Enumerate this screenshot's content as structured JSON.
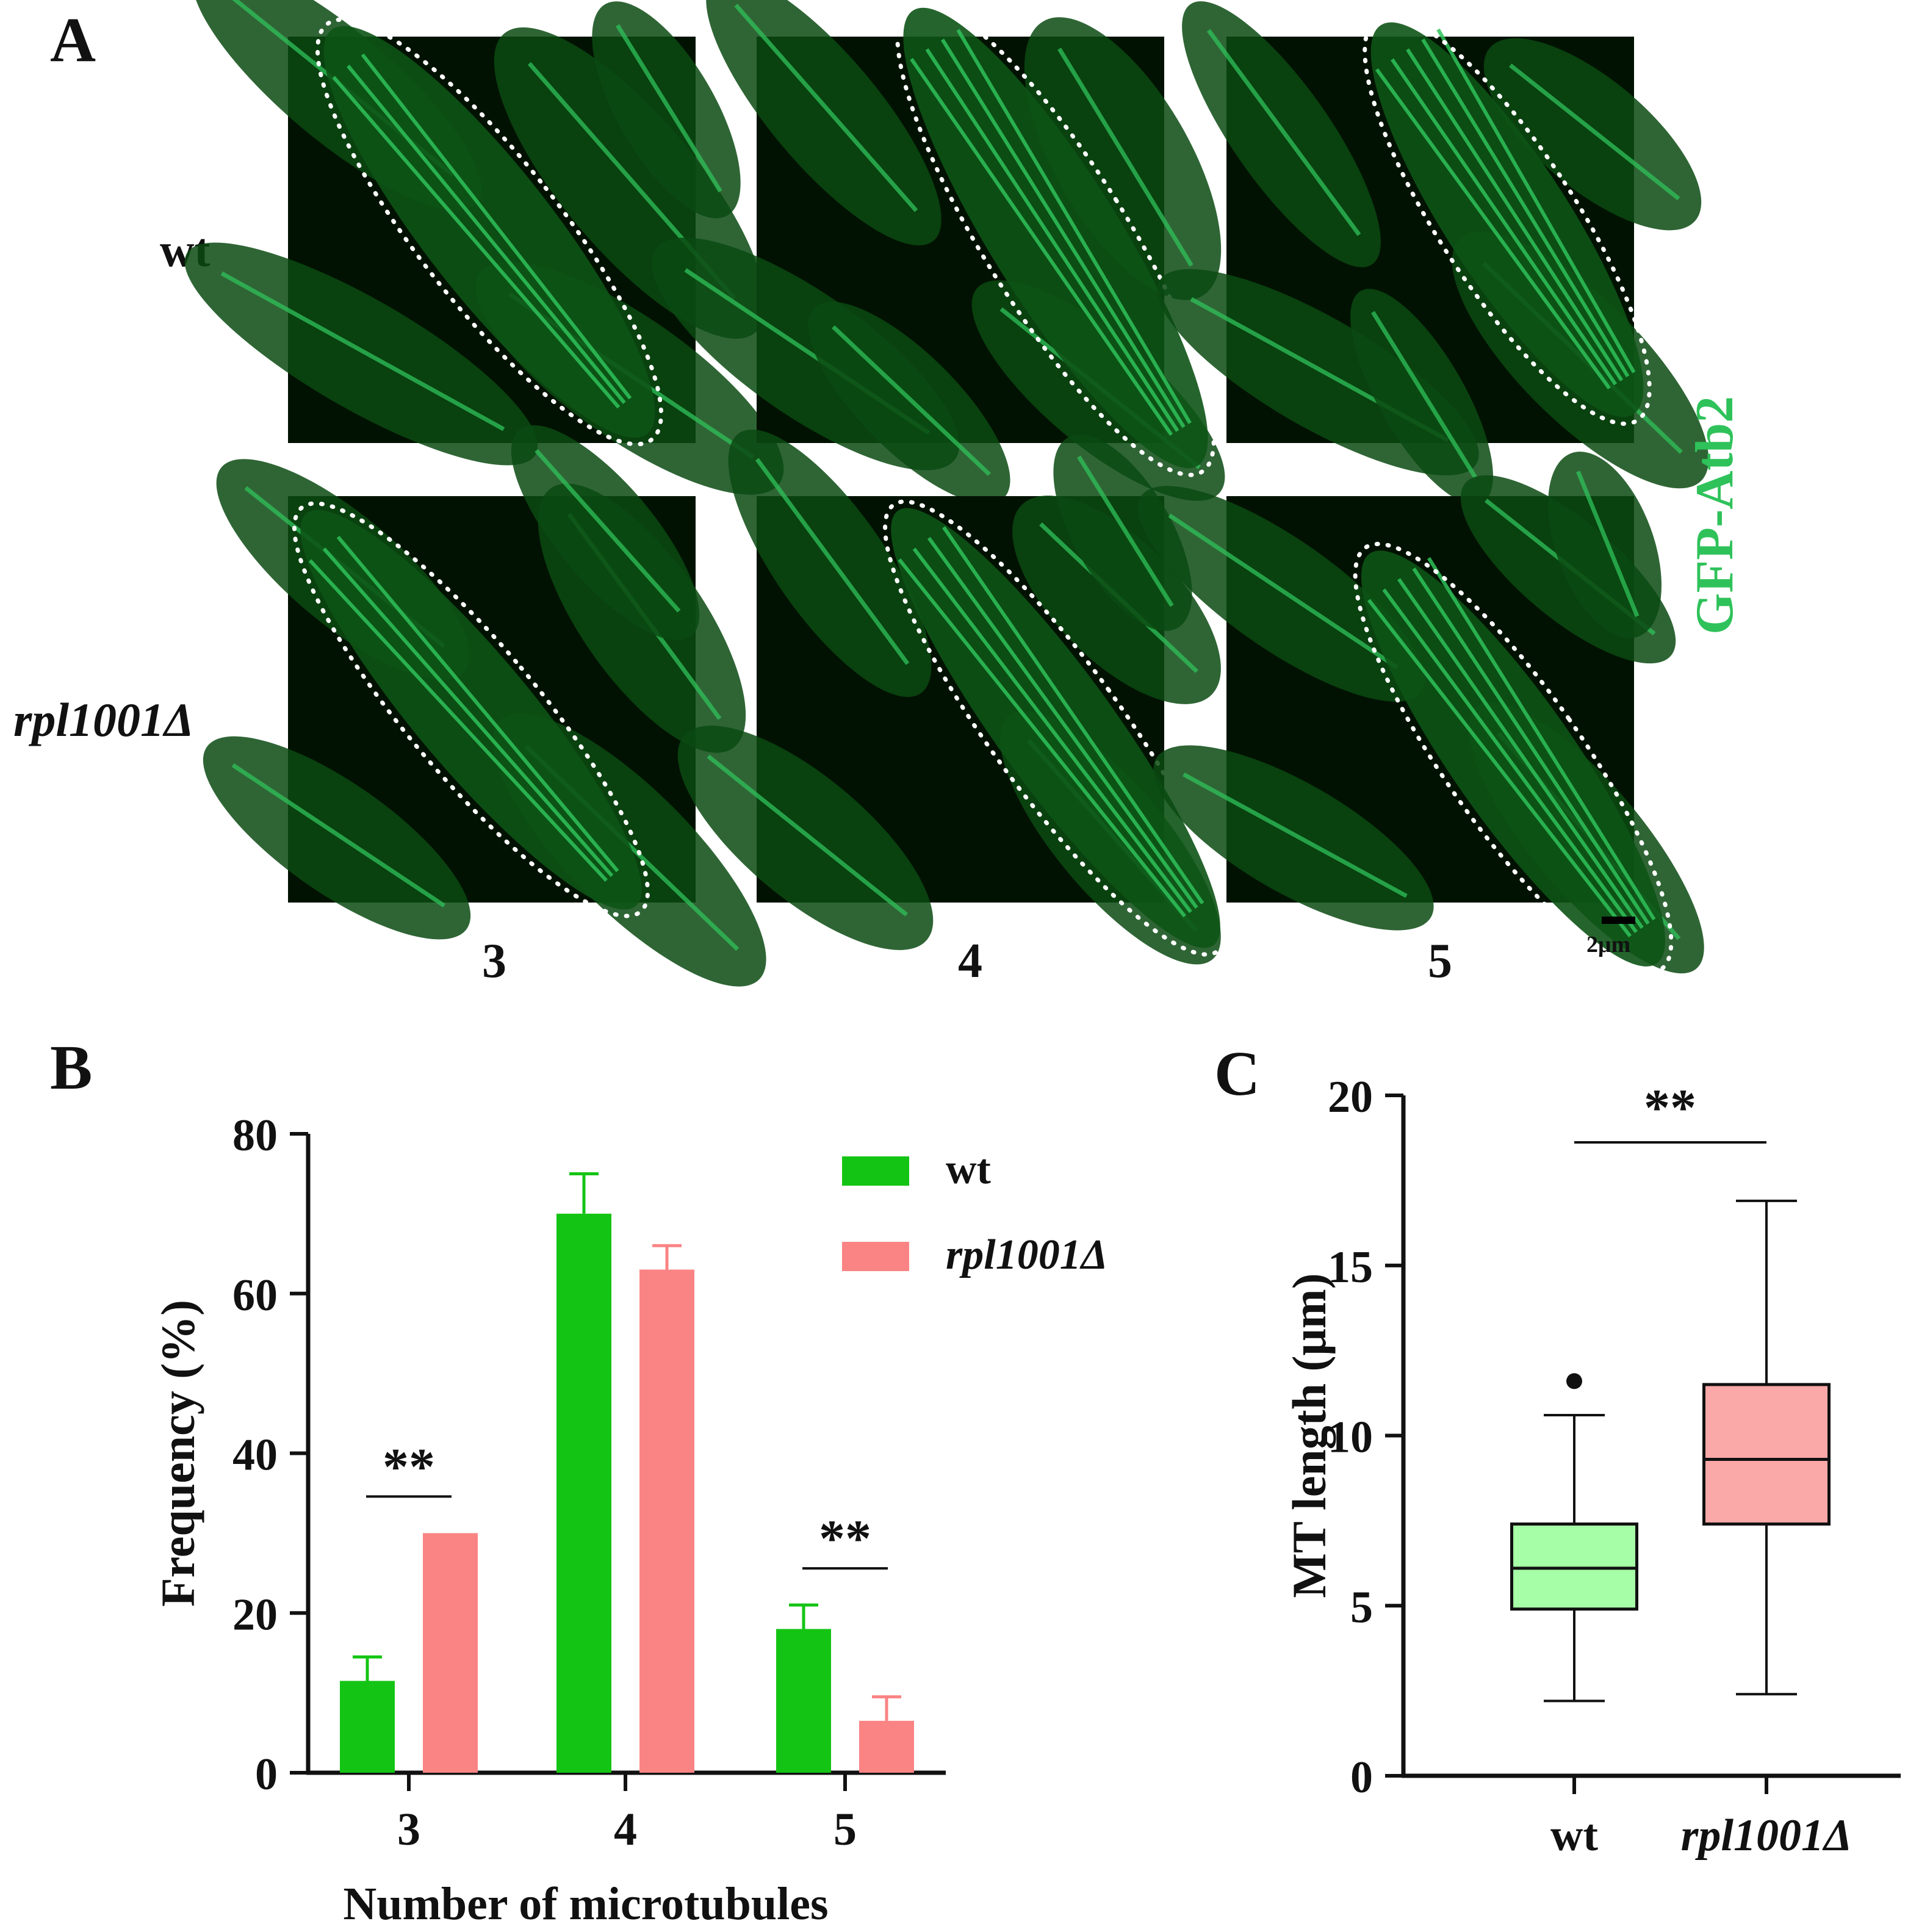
{
  "panel_a": {
    "letter": "A",
    "rows": [
      "wt",
      "rpl1001Δ"
    ],
    "columns": [
      "3",
      "4",
      "5"
    ],
    "channel_label": "GFP-Atb2",
    "scale_bar_label": "2μm",
    "colors": {
      "gfp": "#2fc25a",
      "background": "#021202"
    }
  },
  "chart_data": [
    {
      "type": "bar",
      "panel": "B",
      "categories": [
        "3",
        "4",
        "5"
      ],
      "series": [
        {
          "name": "wt",
          "color": "#14c414",
          "values": [
            11.5,
            70,
            18
          ],
          "errors": [
            3,
            5,
            3
          ]
        },
        {
          "name": "rpl1001Δ",
          "color": "#fa8484",
          "values": [
            30,
            63,
            6.5
          ],
          "errors": [
            0,
            3,
            3
          ]
        }
      ],
      "xlabel": "Number of microtubules",
      "ylabel": "Frequency (%)",
      "ylim": [
        0,
        80
      ],
      "yticks": [
        "0",
        "20",
        "40",
        "60",
        "80"
      ],
      "legend_position": "top-right",
      "significance": [
        {
          "category": "3",
          "label": "**"
        },
        {
          "category": "5",
          "label": "**"
        }
      ]
    },
    {
      "type": "box",
      "panel": "C",
      "categories": [
        "wt",
        "rpl1001Δ"
      ],
      "boxes": [
        {
          "name": "wt",
          "color": "#a6fea6",
          "min": 2.2,
          "q1": 4.9,
          "median": 6.1,
          "q3": 7.4,
          "max": 10.6,
          "outliers": [
            11.6
          ]
        },
        {
          "name": "rpl1001Δ",
          "color": "#fba8a8",
          "min": 2.4,
          "q1": 7.4,
          "median": 9.3,
          "q3": 11.5,
          "max": 16.9,
          "outliers": []
        }
      ],
      "ylabel": "MT length (μm)",
      "ylim": [
        0,
        20
      ],
      "yticks": [
        "0",
        "5",
        "10",
        "15",
        "20"
      ],
      "significance": [
        {
          "between": [
            "wt",
            "rpl1001Δ"
          ],
          "label": "**"
        }
      ]
    }
  ]
}
